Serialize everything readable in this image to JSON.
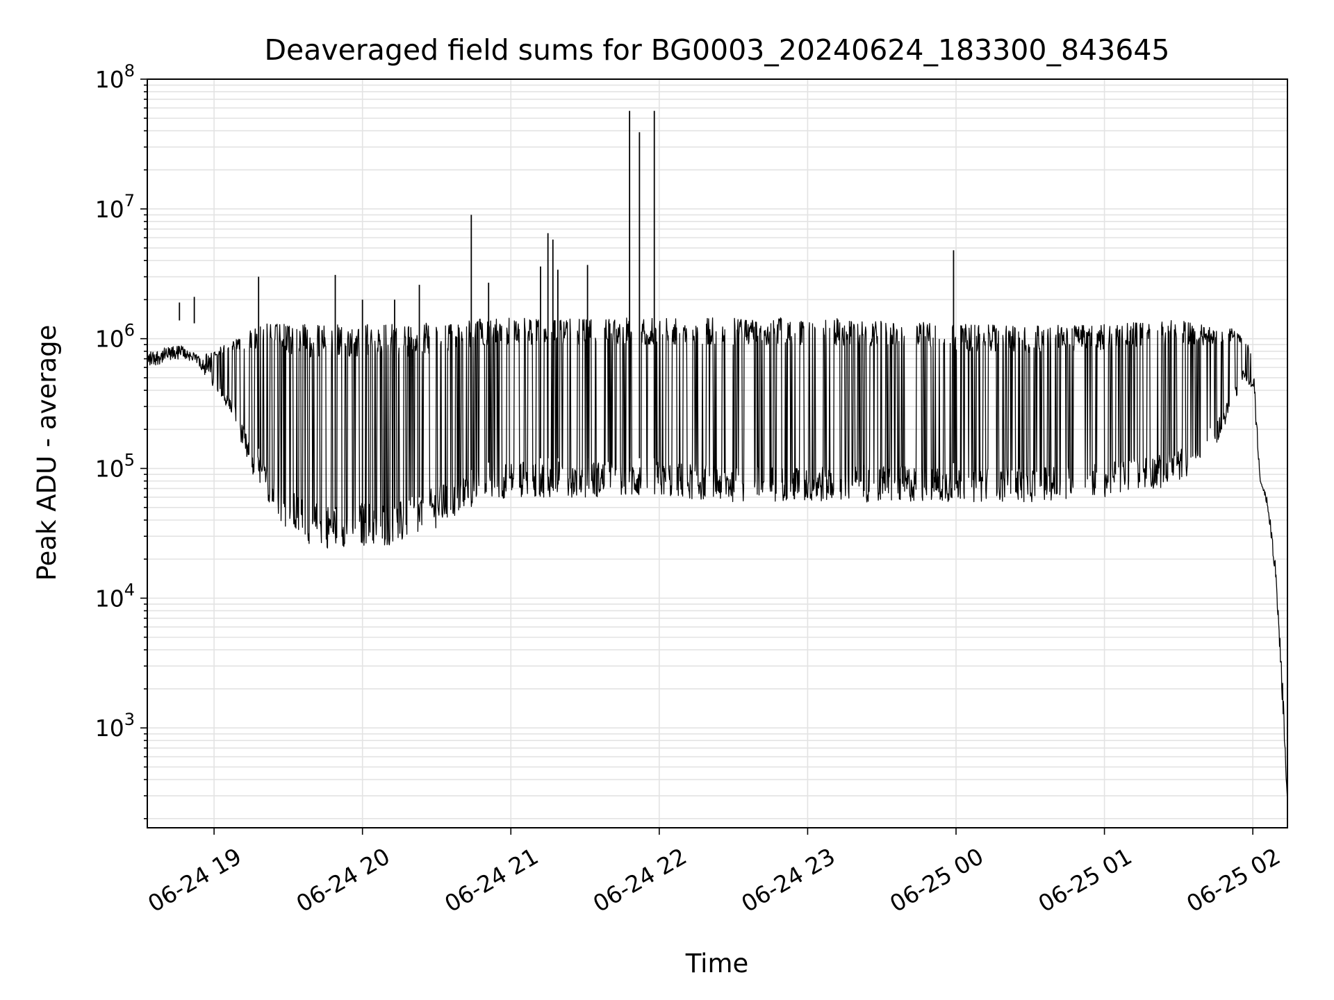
{
  "chart_data": {
    "type": "line",
    "title": "Deaveraged field sums for BG0003_20240624_183300_843645",
    "xlabel": "Time",
    "ylabel": "Peak ADU - average",
    "xlim": [
      "2024-06-24 18:33",
      "2024-06-25 02:14"
    ],
    "ylim": [
      170,
      100000000
    ],
    "yscale": "log",
    "grid": "both (major and minor)",
    "line_color": "#000000",
    "x_tick_labels": [
      "06-24 19",
      "06-24 20",
      "06-24 21",
      "06-24 22",
      "06-24 23",
      "06-25 00",
      "06-25 01",
      "06-25 02"
    ],
    "x_ticks": [
      "2024-06-24 19:00",
      "2024-06-24 20:00",
      "2024-06-24 21:00",
      "2024-06-24 22:00",
      "2024-06-24 23:00",
      "2024-06-25 00:00",
      "2024-06-25 01:00",
      "2024-06-25 02:00"
    ],
    "y_ticks": [
      1000,
      10000,
      100000,
      1000000,
      10000000,
      100000000
    ],
    "y_tick_labels": [
      {
        "base": "10",
        "exp": "3"
      },
      {
        "base": "10",
        "exp": "4"
      },
      {
        "base": "10",
        "exp": "5"
      },
      {
        "base": "10",
        "exp": "6"
      },
      {
        "base": "10",
        "exp": "7"
      },
      {
        "base": "10",
        "exp": "8"
      }
    ],
    "series": [
      {
        "x": [
          "2024-06-24 18:33",
          "2024-06-24 18:40",
          "2024-06-24 18:47",
          "2024-06-24 18:53",
          "2024-06-24 19:00",
          "2024-06-24 19:08",
          "2024-06-24 19:14",
          "2024-06-24 19:20",
          "2024-06-24 19:26",
          "2024-06-24 19:33",
          "2024-06-24 19:40",
          "2024-06-24 19:47",
          "2024-06-24 19:53",
          "2024-06-24 20:00",
          "2024-06-24 20:07",
          "2024-06-24 20:14",
          "2024-06-24 20:20",
          "2024-06-24 20:30",
          "2024-06-24 20:40",
          "2024-06-24 20:50",
          "2024-06-24 21:00",
          "2024-06-24 21:20",
          "2024-06-24 21:40",
          "2024-06-24 22:00",
          "2024-06-24 22:30",
          "2024-06-24 23:00",
          "2024-06-24 23:30",
          "2024-06-25 00:00",
          "2024-06-25 00:30",
          "2024-06-25 01:00",
          "2024-06-25 01:15",
          "2024-06-25 01:25",
          "2024-06-25 01:35",
          "2024-06-25 01:45",
          "2024-06-25 01:52",
          "2024-06-25 01:56",
          "2024-06-25 02:00",
          "2024-06-25 02:03",
          "2024-06-25 02:06",
          "2024-06-25 02:09",
          "2024-06-25 02:12",
          "2024-06-25 02:14"
        ],
        "low": [
          600000,
          650000,
          700000,
          650000,
          400000,
          250000,
          100000,
          60000,
          40000,
          30000,
          25000,
          24000,
          25000,
          25000,
          25000,
          25000,
          28000,
          35000,
          45000,
          55000,
          60000,
          60000,
          60000,
          60000,
          55000,
          55000,
          55000,
          55000,
          55000,
          60000,
          70000,
          70000,
          90000,
          150000,
          300000,
          500000,
          400000,
          80000,
          50000,
          15000,
          1500,
          250
        ],
        "high": [
          800000,
          850000,
          900000,
          750000,
          800000,
          1000000,
          1200000,
          1300000,
          1300000,
          1300000,
          1300000,
          1300000,
          1300000,
          1300000,
          1300000,
          1300000,
          1300000,
          1350000,
          1400000,
          1450000,
          1450000,
          1450000,
          1450000,
          1450000,
          1450000,
          1450000,
          1400000,
          1300000,
          1250000,
          1300000,
          1350000,
          1400000,
          1350000,
          1200000,
          1200000,
          1000000,
          800000,
          80000,
          60000,
          20000,
          2500,
          300
        ],
        "spikes": [
          {
            "x": "2024-06-24 18:46",
            "y": 1900000
          },
          {
            "x": "2024-06-24 18:52",
            "y": 2100000
          },
          {
            "x": "2024-06-24 19:18",
            "y": 3000000
          },
          {
            "x": "2024-06-24 19:49",
            "y": 3100000
          },
          {
            "x": "2024-06-24 20:00",
            "y": 2000000
          },
          {
            "x": "2024-06-24 20:13",
            "y": 2000000
          },
          {
            "x": "2024-06-24 20:23",
            "y": 2600000
          },
          {
            "x": "2024-06-24 20:44",
            "y": 9000000
          },
          {
            "x": "2024-06-24 20:51",
            "y": 2700000
          },
          {
            "x": "2024-06-24 21:12",
            "y": 3600000
          },
          {
            "x": "2024-06-24 21:15",
            "y": 6500000
          },
          {
            "x": "2024-06-24 21:17",
            "y": 5800000
          },
          {
            "x": "2024-06-24 21:19",
            "y": 3400000
          },
          {
            "x": "2024-06-24 21:31",
            "y": 3700000
          },
          {
            "x": "2024-06-24 21:48",
            "y": 57000000
          },
          {
            "x": "2024-06-24 21:52",
            "y": 39000000
          },
          {
            "x": "2024-06-24 21:58",
            "y": 57000000
          },
          {
            "x": "2024-06-24 23:59",
            "y": 4800000
          }
        ]
      }
    ]
  }
}
